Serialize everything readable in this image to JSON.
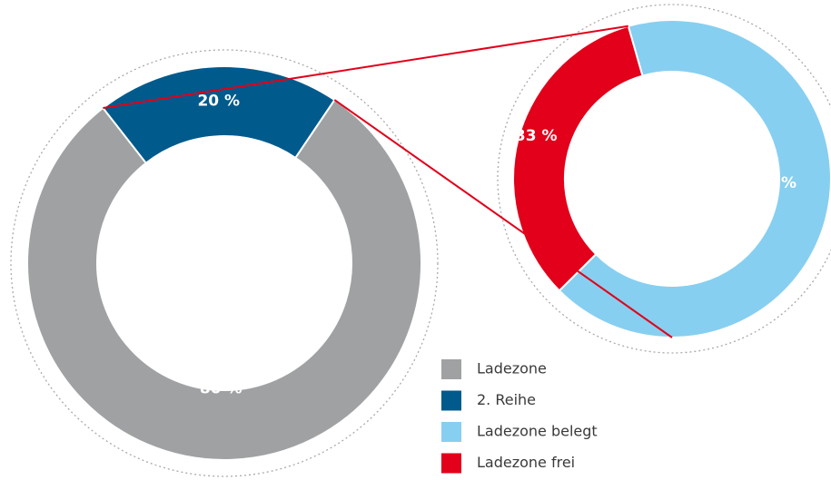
{
  "chart_data": [
    {
      "type": "donut",
      "categories": [
        "Ladezone",
        "2. Reihe"
      ],
      "values": [
        80,
        20
      ],
      "value_labels": [
        "80 %",
        "20 %"
      ],
      "colors": [
        "#a0a1a3",
        "#005a8c"
      ]
    },
    {
      "type": "donut",
      "categories": [
        "Ladezone belegt",
        "Ladezone frei"
      ],
      "values": [
        67,
        33
      ],
      "value_labels": [
        "67 %",
        "33 %"
      ],
      "colors": [
        "#87cff0",
        "#e2001a"
      ]
    }
  ]
}
